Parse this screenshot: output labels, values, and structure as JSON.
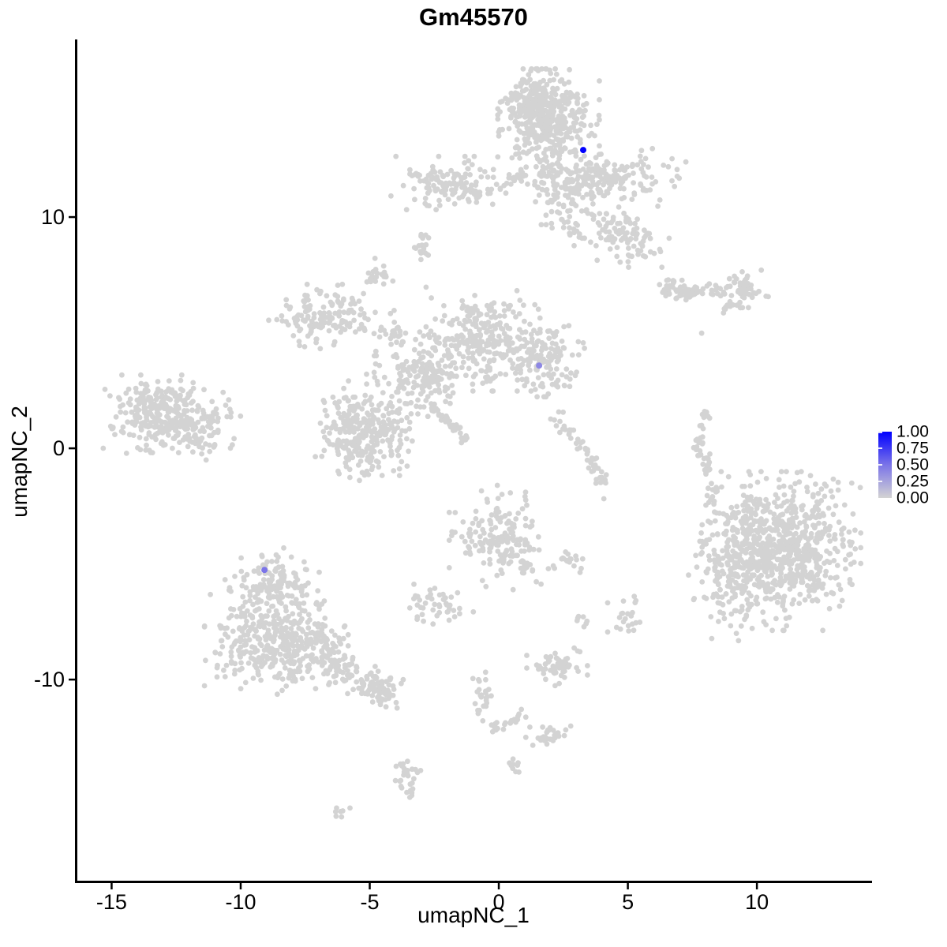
{
  "title": "Gm45570",
  "axes": {
    "x": {
      "label": "umapNC_1",
      "ticks": [
        {
          "value": -15,
          "label": "-15"
        },
        {
          "value": -10,
          "label": "-10"
        },
        {
          "value": -5,
          "label": "-5"
        },
        {
          "value": 0,
          "label": "0"
        },
        {
          "value": 5,
          "label": "5"
        },
        {
          "value": 10,
          "label": "10"
        }
      ]
    },
    "y": {
      "label": "umapNC_2",
      "ticks": [
        {
          "value": 10,
          "label": "10"
        },
        {
          "value": 0,
          "label": "0"
        },
        {
          "value": -10,
          "label": "-10"
        }
      ]
    }
  },
  "legend": {
    "labels": [
      {
        "value": 1.0,
        "label": "1.00"
      },
      {
        "value": 0.75,
        "label": "0.75"
      },
      {
        "value": 0.5,
        "label": "0.50"
      },
      {
        "value": 0.25,
        "label": "0.25"
      },
      {
        "value": 0.0,
        "label": "0.00"
      }
    ],
    "high_color": "#0000FF",
    "mid_color": "#7B74E8",
    "low_color": "#D3D3D3"
  },
  "style": {
    "background": "#FFFFFF",
    "axis_color": "#000000",
    "gray_point_color": "#D3D3D3"
  },
  "chart_data": {
    "type": "scatter",
    "title": "Gm45570",
    "xlabel": "umapNC_1",
    "ylabel": "umapNC_2",
    "xlim": [
      -16.42,
      14.46
    ],
    "ylim": [
      -18.8,
      17.68
    ],
    "grid": false,
    "legend_position": "right",
    "color_scale": {
      "min": 0.0,
      "max": 1.0,
      "low": "#D3D3D3",
      "mid": "#7B74E8",
      "high": "#0000FF"
    },
    "highlighted_cells": [
      {
        "x": 3.27,
        "y": 12.9,
        "value": 1.0
      },
      {
        "x": 1.56,
        "y": 3.58,
        "value": 0.4
      },
      {
        "x": -9.08,
        "y": -5.26,
        "value": 0.5
      }
    ],
    "background_cells": {
      "color": "#D3D3D3",
      "point_radius": 3.4,
      "cluster_format": "['g',cx,cy,sdx,sdy,n]=gaussian blob; ['l',x1,y1,x2,y2,jitter,n]=linear strand",
      "clusters": [
        [
          "g",
          1.93,
          14.2,
          0.82,
          0.92,
          400
        ],
        [
          "g",
          1.22,
          14.95,
          0.61,
          0.41,
          80
        ],
        [
          "g",
          4.68,
          11.81,
          1.07,
          0.48,
          130
        ],
        [
          "g",
          3.15,
          11.37,
          0.67,
          0.61,
          90
        ],
        [
          "g",
          4.99,
          9.15,
          0.67,
          0.55,
          90
        ],
        [
          "g",
          1.77,
          11.71,
          0.61,
          0.85,
          55
        ],
        [
          "l",
          -0.21,
          11.09,
          1.1,
          11.95,
          0.15,
          20
        ],
        [
          "g",
          3.0,
          9.83,
          0.55,
          0.51,
          40
        ],
        [
          "g",
          -2.2,
          11.47,
          0.83,
          0.48,
          110
        ],
        [
          "g",
          -0.98,
          11.09,
          0.31,
          0.27,
          25
        ],
        [
          "g",
          -2.94,
          8.7,
          0.18,
          0.24,
          18
        ],
        [
          "g",
          -4.68,
          7.47,
          0.24,
          0.31,
          22
        ],
        [
          "g",
          -6.85,
          5.7,
          0.86,
          0.58,
          140
        ],
        [
          "l",
          -5.57,
          5.22,
          -2.2,
          4.71,
          0.18,
          25
        ],
        [
          "l",
          -4.13,
          6.08,
          -3.88,
          4.03,
          0.1,
          14
        ],
        [
          "l",
          -3.73,
          4.37,
          -2.05,
          2.49,
          0.25,
          18
        ],
        [
          "g",
          -0.61,
          4.78,
          0.92,
          0.96,
          240
        ],
        [
          "g",
          1.71,
          3.86,
          0.67,
          0.68,
          150
        ],
        [
          "g",
          -3.06,
          3.11,
          0.86,
          0.75,
          130
        ],
        [
          "g",
          -4.83,
          0.96,
          0.8,
          0.89,
          170
        ],
        [
          "l",
          -2.66,
          1.88,
          -1.22,
          0.34,
          0.08,
          45
        ],
        [
          "g",
          -5.5,
          0.41,
          0.67,
          0.75,
          140
        ],
        [
          "l",
          -3.43,
          3.35,
          0.55,
          3.28,
          0.2,
          30
        ],
        [
          "g",
          -13.36,
          1.37,
          0.92,
          0.75,
          200
        ],
        [
          "g",
          -11.83,
          0.96,
          0.76,
          0.61,
          120
        ],
        [
          "g",
          -12.91,
          2.32,
          1.07,
          0.34,
          40
        ],
        [
          "l",
          -11.68,
          1.3,
          -10.7,
          1.37,
          0.1,
          10
        ],
        [
          "g",
          7.43,
          6.79,
          0.55,
          0.2,
          60
        ],
        [
          "g",
          9.48,
          6.9,
          0.4,
          0.34,
          60
        ],
        [
          "g",
          6.67,
          7.0,
          0.24,
          0.17,
          15
        ],
        [
          "l",
          8.44,
          5.8,
          9.05,
          6.25,
          0.08,
          10
        ],
        [
          "l",
          7.98,
          1.71,
          7.77,
          -0.07,
          0.13,
          25
        ],
        [
          "l",
          7.89,
          -0.24,
          8.44,
          -2.46,
          0.13,
          30
        ],
        [
          "l",
          2.08,
          1.57,
          3.46,
          -0.41,
          0.16,
          30
        ],
        [
          "l",
          3.46,
          -0.41,
          4.28,
          -1.71,
          0.16,
          25
        ],
        [
          "g",
          0.0,
          -3.89,
          0.8,
          0.96,
          170
        ],
        [
          "l",
          0.7,
          -4.85,
          1.22,
          -5.36,
          0.13,
          12
        ],
        [
          "g",
          2.75,
          -4.91,
          0.28,
          0.27,
          18
        ],
        [
          "g",
          4.89,
          -7.34,
          0.28,
          0.41,
          22
        ],
        [
          "g",
          3.27,
          -7.37,
          0.15,
          0.2,
          7
        ],
        [
          "g",
          -2.45,
          -6.86,
          0.61,
          0.41,
          45
        ],
        [
          "g",
          -8.78,
          -5.77,
          0.76,
          0.61,
          130
        ],
        [
          "g",
          -8.62,
          -8.33,
          1.16,
          0.96,
          420
        ],
        [
          "l",
          -7.25,
          -8.94,
          -4.34,
          -10.48,
          0.38,
          120
        ],
        [
          "g",
          -4.5,
          -10.36,
          0.3,
          0.3,
          30
        ],
        [
          "g",
          2.26,
          -9.45,
          0.49,
          0.34,
          60
        ],
        [
          "l",
          -0.67,
          -9.62,
          -0.61,
          -11.74,
          0.16,
          25
        ],
        [
          "l",
          -0.31,
          -12.18,
          0.98,
          -11.6,
          0.13,
          22
        ],
        [
          "g",
          1.9,
          -12.29,
          0.37,
          0.27,
          30
        ],
        [
          "g",
          0.52,
          -13.65,
          0.15,
          0.2,
          9
        ],
        [
          "g",
          -3.52,
          -14.23,
          0.24,
          0.55,
          30
        ],
        [
          "g",
          -6.09,
          -15.77,
          0.18,
          0.14,
          7
        ],
        [
          "g",
          10.95,
          -4.44,
          1.28,
          1.43,
          750
        ],
        [
          "g",
          8.96,
          -5.46,
          0.67,
          1.19,
          130
        ],
        [
          "g",
          9.42,
          -2.8,
          0.55,
          0.41,
          15
        ]
      ],
      "singles": [
        [
          7.86,
          4.98
        ],
        [
          4.07,
          -2.18
        ],
        [
          2.11,
          -5.08
        ],
        [
          -4.37,
          -11.18
        ],
        [
          -3.94,
          -11.23
        ]
      ]
    }
  }
}
